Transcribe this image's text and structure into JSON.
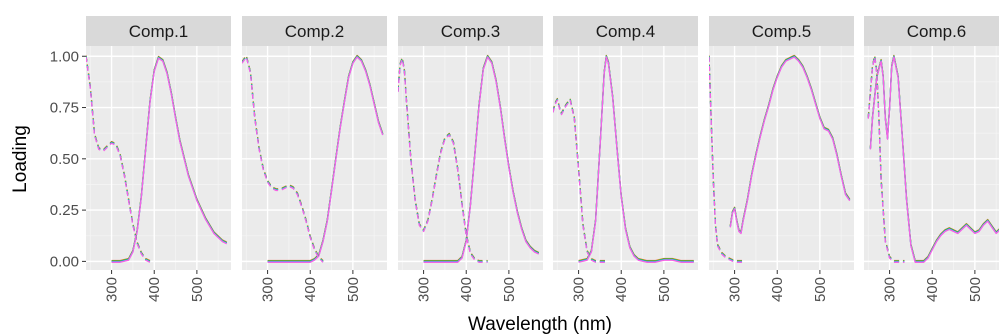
{
  "chart_data": {
    "type": "line",
    "facets": [
      "Comp.1",
      "Comp.2",
      "Comp.3",
      "Comp.4",
      "Comp.5",
      "Comp.6"
    ],
    "xlabel": "Wavelength (nm)",
    "ylabel": "Loading",
    "ylim": [
      0,
      1.05
    ],
    "xlim": [
      240,
      580
    ],
    "x_ticks": [
      300,
      400,
      500
    ],
    "y_ticks": [
      0,
      0.25,
      0.5,
      0.75,
      1.0
    ],
    "y_tick_labels": [
      "0.00",
      "0.25",
      "0.50",
      "0.75",
      "1.00"
    ],
    "grid": true,
    "line_types": {
      "solid": "emission",
      "dashed": "excitation"
    },
    "series_colors": [
      "#F8766D",
      "#B79F00",
      "#00BA38",
      "#00BFC4",
      "#619CFF",
      "#F564E3"
    ],
    "panels": [
      {
        "name": "Comp.1",
        "excitation": {
          "x": [
            240,
            250,
            260,
            270,
            280,
            290,
            300,
            310,
            320,
            330,
            340,
            350,
            360,
            370,
            380,
            390
          ],
          "y": [
            1.0,
            0.85,
            0.62,
            0.55,
            0.54,
            0.56,
            0.58,
            0.57,
            0.52,
            0.42,
            0.3,
            0.18,
            0.09,
            0.04,
            0.01,
            0.0
          ]
        },
        "emission": {
          "x": [
            300,
            320,
            340,
            350,
            360,
            370,
            380,
            390,
            400,
            410,
            420,
            430,
            440,
            450,
            460,
            480,
            500,
            520,
            540,
            560,
            570
          ],
          "y": [
            0.0,
            0.0,
            0.01,
            0.05,
            0.15,
            0.32,
            0.55,
            0.78,
            0.93,
            0.995,
            0.98,
            0.92,
            0.82,
            0.7,
            0.59,
            0.42,
            0.3,
            0.21,
            0.14,
            0.1,
            0.09
          ]
        }
      },
      {
        "name": "Comp.2",
        "excitation": {
          "x": [
            240,
            250,
            260,
            270,
            280,
            290,
            300,
            310,
            320,
            330,
            340,
            350,
            360,
            370,
            380,
            390,
            400,
            410,
            420,
            430
          ],
          "y": [
            0.97,
            1.0,
            0.92,
            0.7,
            0.55,
            0.45,
            0.39,
            0.36,
            0.35,
            0.35,
            0.36,
            0.37,
            0.36,
            0.33,
            0.27,
            0.2,
            0.12,
            0.06,
            0.02,
            0.0
          ]
        },
        "emission": {
          "x": [
            300,
            340,
            380,
            400,
            410,
            420,
            430,
            440,
            450,
            460,
            470,
            480,
            490,
            500,
            510,
            520,
            530,
            540,
            550,
            560,
            570
          ],
          "y": [
            0.0,
            0.0,
            0.0,
            0.0,
            0.01,
            0.03,
            0.1,
            0.2,
            0.35,
            0.5,
            0.65,
            0.78,
            0.9,
            0.97,
            1.0,
            0.98,
            0.93,
            0.86,
            0.77,
            0.68,
            0.62
          ]
        }
      },
      {
        "name": "Comp.3",
        "excitation": {
          "x": [
            240,
            245,
            250,
            255,
            260,
            270,
            280,
            290,
            300,
            310,
            320,
            330,
            340,
            350,
            360,
            370,
            380,
            390,
            400,
            410,
            420,
            430,
            440,
            450
          ],
          "y": [
            0.83,
            0.96,
            0.99,
            0.93,
            0.78,
            0.5,
            0.3,
            0.18,
            0.15,
            0.2,
            0.3,
            0.42,
            0.53,
            0.6,
            0.62,
            0.58,
            0.45,
            0.28,
            0.13,
            0.04,
            0.01,
            0.0,
            0.0,
            0.0
          ]
        },
        "emission": {
          "x": [
            300,
            340,
            360,
            380,
            390,
            400,
            410,
            420,
            430,
            440,
            450,
            460,
            470,
            480,
            490,
            500,
            510,
            520,
            530,
            540,
            550,
            560,
            570
          ],
          "y": [
            0.0,
            0.0,
            0.0,
            0.0,
            0.02,
            0.1,
            0.28,
            0.52,
            0.76,
            0.94,
            1.0,
            0.97,
            0.88,
            0.75,
            0.6,
            0.46,
            0.34,
            0.24,
            0.16,
            0.1,
            0.07,
            0.05,
            0.04
          ]
        }
      },
      {
        "name": "Comp.4",
        "excitation": {
          "x": [
            240,
            245,
            250,
            255,
            260,
            270,
            280,
            290,
            300,
            310,
            320,
            330,
            340,
            350,
            360,
            370
          ],
          "y": [
            0.73,
            0.77,
            0.79,
            0.75,
            0.72,
            0.76,
            0.79,
            0.7,
            0.45,
            0.18,
            0.05,
            0.01,
            0.0,
            0.0,
            0.0,
            0.0
          ]
        },
        "emission": {
          "x": [
            300,
            320,
            330,
            340,
            350,
            360,
            365,
            370,
            380,
            390,
            400,
            410,
            420,
            430,
            440,
            460,
            480,
            500,
            520,
            540,
            560,
            570
          ],
          "y": [
            0.0,
            0.01,
            0.05,
            0.2,
            0.55,
            0.92,
            1.0,
            0.97,
            0.8,
            0.55,
            0.32,
            0.16,
            0.07,
            0.03,
            0.01,
            0.0,
            0.0,
            0.01,
            0.01,
            0.0,
            0.0,
            0.0
          ]
        }
      },
      {
        "name": "Comp.5",
        "excitation": {
          "x": [
            240,
            245,
            250,
            255,
            260,
            270,
            280,
            290,
            300,
            310,
            320
          ],
          "y": [
            1.0,
            0.7,
            0.4,
            0.18,
            0.08,
            0.04,
            0.02,
            0.01,
            0.0,
            0.0,
            0.0
          ]
        },
        "emission": {
          "x": [
            290,
            295,
            300,
            305,
            310,
            315,
            320,
            330,
            340,
            350,
            360,
            370,
            380,
            390,
            400,
            410,
            420,
            430,
            440,
            450,
            460,
            470,
            480,
            490,
            500,
            510,
            520,
            530,
            540,
            550,
            560,
            570
          ],
          "y": [
            0.17,
            0.24,
            0.26,
            0.2,
            0.15,
            0.14,
            0.2,
            0.3,
            0.42,
            0.52,
            0.61,
            0.69,
            0.76,
            0.84,
            0.9,
            0.95,
            0.98,
            0.99,
            1.0,
            0.98,
            0.95,
            0.9,
            0.84,
            0.77,
            0.7,
            0.65,
            0.64,
            0.6,
            0.52,
            0.42,
            0.33,
            0.3
          ]
        }
      },
      {
        "name": "Comp.6",
        "excitation": {
          "x": [
            250,
            260,
            265,
            270,
            275,
            280,
            290,
            300,
            310,
            320,
            330,
            335
          ],
          "y": [
            0.7,
            0.95,
            1.0,
            0.92,
            0.7,
            0.4,
            0.1,
            0.02,
            0.0,
            0.0,
            0.0,
            0.0
          ]
        },
        "emission": {
          "x": [
            255,
            260,
            270,
            280,
            285,
            290,
            295,
            300,
            305,
            310,
            320,
            330,
            340,
            350,
            360,
            370,
            380,
            390,
            400,
            410,
            420,
            430,
            440,
            450,
            460,
            470,
            480,
            490,
            500,
            510,
            520,
            530,
            540,
            550,
            560,
            570
          ],
          "y": [
            0.55,
            0.7,
            0.9,
            0.98,
            0.9,
            0.7,
            0.6,
            0.75,
            0.95,
            1.0,
            0.9,
            0.6,
            0.3,
            0.08,
            0.0,
            0.0,
            0.0,
            0.02,
            0.06,
            0.1,
            0.13,
            0.15,
            0.16,
            0.15,
            0.14,
            0.16,
            0.18,
            0.16,
            0.14,
            0.15,
            0.18,
            0.2,
            0.17,
            0.14,
            0.16,
            0.2
          ]
        }
      }
    ]
  }
}
